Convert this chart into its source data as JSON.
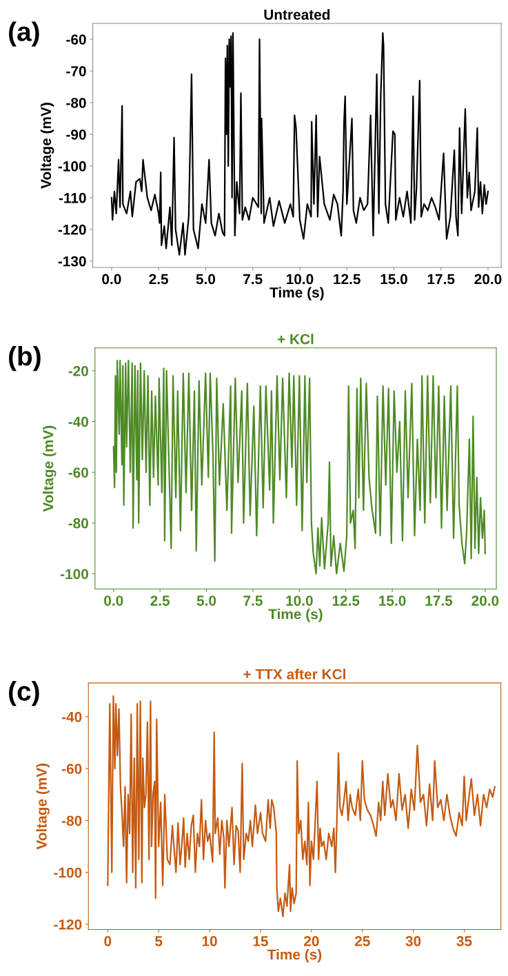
{
  "chart_data": [
    {
      "type": "line",
      "title": "Untreated",
      "xlabel": "Time (s)",
      "ylabel": "Voltage (mV)",
      "annotations": [
        "(a)"
      ],
      "grid": false,
      "legend": false,
      "xlim": [
        -1.0,
        20.7
      ],
      "ylim": [
        -132,
        -55
      ],
      "xticks": [
        {
          "value": 0,
          "label": "0.0"
        },
        {
          "value": 2.5,
          "label": "2.5"
        },
        {
          "value": 5,
          "label": "5.0"
        },
        {
          "value": 7.5,
          "label": "7.5"
        },
        {
          "value": 10,
          "label": "10.0"
        },
        {
          "value": 12.5,
          "label": "12.5"
        },
        {
          "value": 15,
          "label": "15.0"
        },
        {
          "value": 17.5,
          "label": "17.5"
        },
        {
          "value": 20,
          "label": "20.0"
        }
      ],
      "yticks": [
        -130,
        -120,
        -110,
        -100,
        -90,
        -80,
        -70,
        -60
      ],
      "series": [
        {
          "color": "#000000",
          "x": [
            0.0,
            0.05,
            0.15,
            0.25,
            0.37,
            0.45,
            0.56,
            0.6,
            0.8,
            1.0,
            1.1,
            1.3,
            1.5,
            1.6,
            1.67,
            1.9,
            2.1,
            2.3,
            2.5,
            2.55,
            2.61,
            2.65,
            2.8,
            2.9,
            3.1,
            3.2,
            3.32,
            3.4,
            3.6,
            3.8,
            3.9,
            4.1,
            4.25,
            4.35,
            4.6,
            4.8,
            5.0,
            5.18,
            5.3,
            5.5,
            5.7,
            5.9,
            6.0,
            6.05,
            6.1,
            6.15,
            6.2,
            6.25,
            6.3,
            6.35,
            6.4,
            6.45,
            6.55,
            6.65,
            6.8,
            6.87,
            6.95,
            7.1,
            7.3,
            7.5,
            7.8,
            7.86,
            7.95,
            7.97,
            8.1,
            8.4,
            8.6,
            8.9,
            9.2,
            9.5,
            9.65,
            9.72,
            9.8,
            10.0,
            10.2,
            10.4,
            10.6,
            10.63,
            10.75,
            10.87,
            10.95,
            11.05,
            11.3,
            11.6,
            11.8,
            12.0,
            12.2,
            12.3,
            12.35,
            12.41,
            12.5,
            12.77,
            12.85,
            13.0,
            13.2,
            13.4,
            13.6,
            13.76,
            13.9,
            14.09,
            14.2,
            14.3,
            14.41,
            14.45,
            14.55,
            14.7,
            14.95,
            15.05,
            15.1,
            15.3,
            15.5,
            15.7,
            15.9,
            16.02,
            16.1,
            16.2,
            16.37,
            16.45,
            16.6,
            16.8,
            17.0,
            17.2,
            17.4,
            17.64,
            17.8,
            18.0,
            18.21,
            18.3,
            18.4,
            18.49,
            18.6,
            18.79,
            18.9,
            19.0,
            19.1,
            19.3,
            19.43,
            19.5,
            19.6,
            19.7,
            19.8,
            19.9,
            20.0
          ],
          "values": [
            -110,
            -117,
            -108,
            -115,
            -98,
            -113,
            -81,
            -112,
            -115,
            -108,
            -116,
            -105,
            -104,
            -108,
            -98,
            -110,
            -114,
            -109,
            -115,
            -118,
            -102,
            -125,
            -119,
            -126,
            -113,
            -125,
            -91,
            -120,
            -128,
            -118,
            -128,
            -116,
            -71,
            -120,
            -126,
            -112,
            -118,
            -98,
            -118,
            -122,
            -115,
            -121,
            -122,
            -66,
            -90,
            -62,
            -100,
            -60,
            -75,
            -59,
            -110,
            -58,
            -122,
            -105,
            -115,
            -77,
            -117,
            -113,
            -117,
            -110,
            -113,
            -60,
            -115,
            -85,
            -118,
            -110,
            -119,
            -111,
            -118,
            -112,
            -116,
            -84,
            -88,
            -117,
            -123,
            -112,
            -116,
            -86,
            -112,
            -84,
            -116,
            -97,
            -112,
            -117,
            -109,
            -112,
            -122,
            -108,
            -86,
            -78,
            -112,
            -85,
            -114,
            -118,
            -110,
            -114,
            -112,
            -84,
            -122,
            -71,
            -115,
            -78,
            -58,
            -62,
            -112,
            -118,
            -89,
            -90,
            -117,
            -110,
            -116,
            -108,
            -118,
            -78,
            -117,
            -107,
            -73,
            -116,
            -112,
            -114,
            -110,
            -113,
            -117,
            -96,
            -123,
            -116,
            -95,
            -116,
            -122,
            -88,
            -115,
            -82,
            -110,
            -102,
            -114,
            -108,
            -88,
            -113,
            -105,
            -115,
            -106,
            -112,
            -108
          ]
        }
      ]
    },
    {
      "type": "line",
      "title": "+ KCl",
      "xlabel": "Time (s)",
      "ylabel": "Voltage (mV)",
      "annotations": [
        "(b)"
      ],
      "grid": false,
      "legend": false,
      "xlim": [
        -1.0,
        20.6
      ],
      "ylim": [
        -106,
        -11
      ],
      "xticks": [
        {
          "value": 0,
          "label": "0.0"
        },
        {
          "value": 2.5,
          "label": "2.5"
        },
        {
          "value": 5,
          "label": "5.0"
        },
        {
          "value": 7.5,
          "label": "7.5"
        },
        {
          "value": 10,
          "label": "10.0"
        },
        {
          "value": 12.5,
          "label": "12.5"
        },
        {
          "value": 15,
          "label": "15.0"
        },
        {
          "value": 17.5,
          "label": "17.5"
        },
        {
          "value": 20,
          "label": "20.0"
        }
      ],
      "yticks": [
        -100,
        -80,
        -60,
        -40,
        -20
      ],
      "series": [
        {
          "color": "#4e8a25",
          "x": [
            0.0,
            0.05,
            0.1,
            0.15,
            0.2,
            0.3,
            0.35,
            0.45,
            0.5,
            0.55,
            0.65,
            0.7,
            0.8,
            0.9,
            1.0,
            1.05,
            1.15,
            1.25,
            1.3,
            1.35,
            1.45,
            1.55,
            1.65,
            1.75,
            1.85,
            1.95,
            2.05,
            2.15,
            2.25,
            2.4,
            2.45,
            2.6,
            2.7,
            2.75,
            2.85,
            3.1,
            3.2,
            3.35,
            3.45,
            3.6,
            3.75,
            3.9,
            4.05,
            4.2,
            4.35,
            4.45,
            4.6,
            4.75,
            4.95,
            5.1,
            5.2,
            5.35,
            5.45,
            5.55,
            5.7,
            5.9,
            6.1,
            6.3,
            6.35,
            6.55,
            6.7,
            6.9,
            7.0,
            7.2,
            7.35,
            7.55,
            7.7,
            7.9,
            8.05,
            8.2,
            8.4,
            8.5,
            8.6,
            8.8,
            8.95,
            9.1,
            9.3,
            9.45,
            9.6,
            9.7,
            9.85,
            10.0,
            10.15,
            10.3,
            10.4,
            10.55,
            10.65,
            10.75,
            10.9,
            11.0,
            11.1,
            11.2,
            11.35,
            11.55,
            11.62,
            11.7,
            11.85,
            12.0,
            12.2,
            12.4,
            12.55,
            12.65,
            12.75,
            12.9,
            13.0,
            13.1,
            13.2,
            13.3,
            13.45,
            13.6,
            13.75,
            13.9,
            14.1,
            14.2,
            14.35,
            14.5,
            14.65,
            14.8,
            14.95,
            15.1,
            15.25,
            15.4,
            15.55,
            15.7,
            15.85,
            16.05,
            16.2,
            16.35,
            16.5,
            16.6,
            16.75,
            16.9,
            17.05,
            17.2,
            17.35,
            17.5,
            17.65,
            17.8,
            17.95,
            18.15,
            18.3,
            18.5,
            18.6,
            18.75,
            18.9,
            19.0,
            19.15,
            19.25,
            19.35,
            19.45,
            19.55,
            19.65,
            19.75,
            19.85,
            19.95,
            20.0
          ],
          "values": [
            -50,
            -66,
            -22,
            -60,
            -16,
            -45,
            -16,
            -57,
            -18,
            -73,
            -17,
            -50,
            -16,
            -60,
            -17,
            -82,
            -18,
            -63,
            -20,
            -80,
            -17,
            -55,
            -20,
            -60,
            -22,
            -73,
            -28,
            -62,
            -30,
            -65,
            -23,
            -68,
            -19,
            -87,
            -20,
            -90,
            -22,
            -70,
            -28,
            -83,
            -21,
            -68,
            -21,
            -75,
            -28,
            -91,
            -24,
            -65,
            -21,
            -62,
            -21,
            -53,
            -95,
            -23,
            -65,
            -33,
            -75,
            -26,
            -84,
            -23,
            -64,
            -28,
            -80,
            -25,
            -77,
            -34,
            -85,
            -26,
            -74,
            -26,
            -67,
            -28,
            -80,
            -22,
            -63,
            -23,
            -70,
            -21,
            -58,
            -22,
            -73,
            -22,
            -83,
            -22,
            -64,
            -23,
            -80,
            -92,
            -100,
            -82,
            -97,
            -78,
            -98,
            -80,
            -56,
            -97,
            -85,
            -100,
            -88,
            -99,
            -85,
            -26,
            -80,
            -75,
            -90,
            -27,
            -70,
            -23,
            -75,
            -25,
            -62,
            -74,
            -84,
            -30,
            -85,
            -26,
            -65,
            -27,
            -88,
            -28,
            -60,
            -40,
            -87,
            -28,
            -70,
            -25,
            -85,
            -47,
            -75,
            -22,
            -80,
            -22,
            -72,
            -22,
            -70,
            -26,
            -82,
            -30,
            -75,
            -26,
            -86,
            -26,
            -73,
            -88,
            -96,
            -84,
            -47,
            -94,
            -38,
            -90,
            -62,
            -92,
            -70,
            -86,
            -75,
            -92
          ]
        }
      ]
    },
    {
      "type": "line",
      "title": "+ TTX after KCl",
      "xlabel": "Time (s)",
      "ylabel": "Voltage (mV)",
      "annotations": [
        "(c)"
      ],
      "grid": false,
      "legend": false,
      "xlim": [
        -1.9,
        38.6
      ],
      "ylim": [
        -122,
        -27
      ],
      "xticks": [
        0,
        5,
        10,
        15,
        20,
        25,
        30,
        35
      ],
      "yticks": [
        -120,
        -100,
        -80,
        -60,
        -40
      ],
      "series": [
        {
          "color": "#c55a11",
          "x": [
            0.0,
            0.1,
            0.2,
            0.4,
            0.55,
            0.7,
            0.8,
            0.95,
            1.1,
            1.25,
            1.4,
            1.55,
            1.7,
            1.85,
            2.0,
            2.15,
            2.3,
            2.45,
            2.6,
            2.75,
            2.9,
            3.05,
            3.2,
            3.35,
            3.45,
            3.6,
            3.75,
            3.9,
            4.05,
            4.2,
            4.3,
            4.45,
            4.6,
            4.7,
            4.8,
            5.0,
            5.2,
            5.4,
            5.6,
            5.85,
            6.1,
            6.35,
            6.5,
            6.7,
            6.9,
            7.1,
            7.3,
            7.45,
            7.6,
            7.8,
            8.0,
            8.2,
            8.4,
            8.6,
            8.8,
            9.0,
            9.2,
            9.4,
            9.6,
            9.8,
            10.0,
            10.3,
            10.45,
            10.55,
            10.8,
            11.0,
            11.2,
            11.4,
            11.5,
            11.7,
            11.9,
            12.2,
            12.4,
            12.6,
            12.8,
            13.0,
            13.2,
            13.35,
            13.6,
            13.8,
            14.0,
            14.2,
            14.5,
            14.7,
            15.0,
            15.2,
            15.5,
            15.75,
            15.95,
            16.1,
            16.3,
            16.55,
            16.6,
            16.75,
            16.95,
            17.2,
            17.4,
            17.6,
            17.85,
            17.95,
            18.1,
            18.3,
            18.5,
            18.6,
            18.75,
            18.95,
            19.15,
            19.35,
            19.55,
            19.7,
            19.85,
            20.0,
            20.2,
            20.35,
            20.55,
            20.7,
            20.85,
            21.0,
            21.2,
            21.45,
            21.7,
            22.0,
            22.2,
            22.35,
            22.5,
            22.65,
            22.8,
            23.0,
            23.2,
            23.4,
            23.6,
            23.8,
            24.0,
            24.3,
            24.6,
            24.8,
            25.0,
            25.2,
            25.5,
            25.8,
            26.1,
            26.35,
            26.6,
            26.8,
            27.0,
            27.2,
            27.5,
            27.8,
            28.0,
            28.3,
            28.6,
            28.9,
            29.2,
            29.5,
            29.8,
            30.1,
            30.4,
            30.7,
            31.0,
            31.3,
            31.6,
            31.9,
            32.1,
            32.4,
            32.7,
            33.0,
            33.3,
            33.6,
            33.9,
            34.2,
            34.5,
            34.8,
            35.0,
            35.2,
            35.4,
            35.7,
            36.0,
            36.3,
            36.6,
            36.9,
            37.2,
            37.5,
            37.8,
            38.0
          ],
          "values": [
            -105,
            -70,
            -35,
            -100,
            -32,
            -60,
            -35,
            -55,
            -37,
            -67,
            -77,
            -90,
            -67,
            -104,
            -70,
            -85,
            -39,
            -100,
            -56,
            -106,
            -35,
            -95,
            -34,
            -104,
            -56,
            -75,
            -70,
            -42,
            -95,
            -34,
            -90,
            -70,
            -65,
            -110,
            -41,
            -90,
            -73,
            -105,
            -70,
            -95,
            -97,
            -82,
            -90,
            -100,
            -81,
            -97,
            -88,
            -79,
            -98,
            -85,
            -95,
            -82,
            -78,
            -100,
            -85,
            -90,
            -72,
            -95,
            -80,
            -88,
            -85,
            -96,
            -46,
            -85,
            -79,
            -93,
            -80,
            -87,
            -106,
            -80,
            -90,
            -75,
            -97,
            -82,
            -84,
            -100,
            -58,
            -95,
            -85,
            -88,
            -80,
            -90,
            -74,
            -85,
            -77,
            -85,
            -88,
            -72,
            -83,
            -72,
            -75,
            -85,
            -106,
            -115,
            -110,
            -117,
            -108,
            -113,
            -97,
            -115,
            -106,
            -112,
            -108,
            -57,
            -85,
            -80,
            -95,
            -88,
            -97,
            -73,
            -105,
            -88,
            -95,
            -82,
            -65,
            -95,
            -83,
            -90,
            -88,
            -95,
            -85,
            -90,
            -83,
            -100,
            -80,
            -54,
            -75,
            -78,
            -72,
            -65,
            -80,
            -70,
            -75,
            -78,
            -68,
            -80,
            -57,
            -72,
            -76,
            -78,
            -82,
            -86,
            -73,
            -80,
            -65,
            -78,
            -62,
            -75,
            -72,
            -80,
            -62,
            -76,
            -70,
            -83,
            -68,
            -76,
            -51,
            -73,
            -70,
            -82,
            -66,
            -80,
            -57,
            -75,
            -72,
            -80,
            -70,
            -78,
            -83,
            -86,
            -77,
            -82,
            -63,
            -80,
            -73,
            -64,
            -78,
            -70,
            -82,
            -70,
            -75,
            -68,
            -71,
            -67
          ]
        }
      ]
    }
  ]
}
